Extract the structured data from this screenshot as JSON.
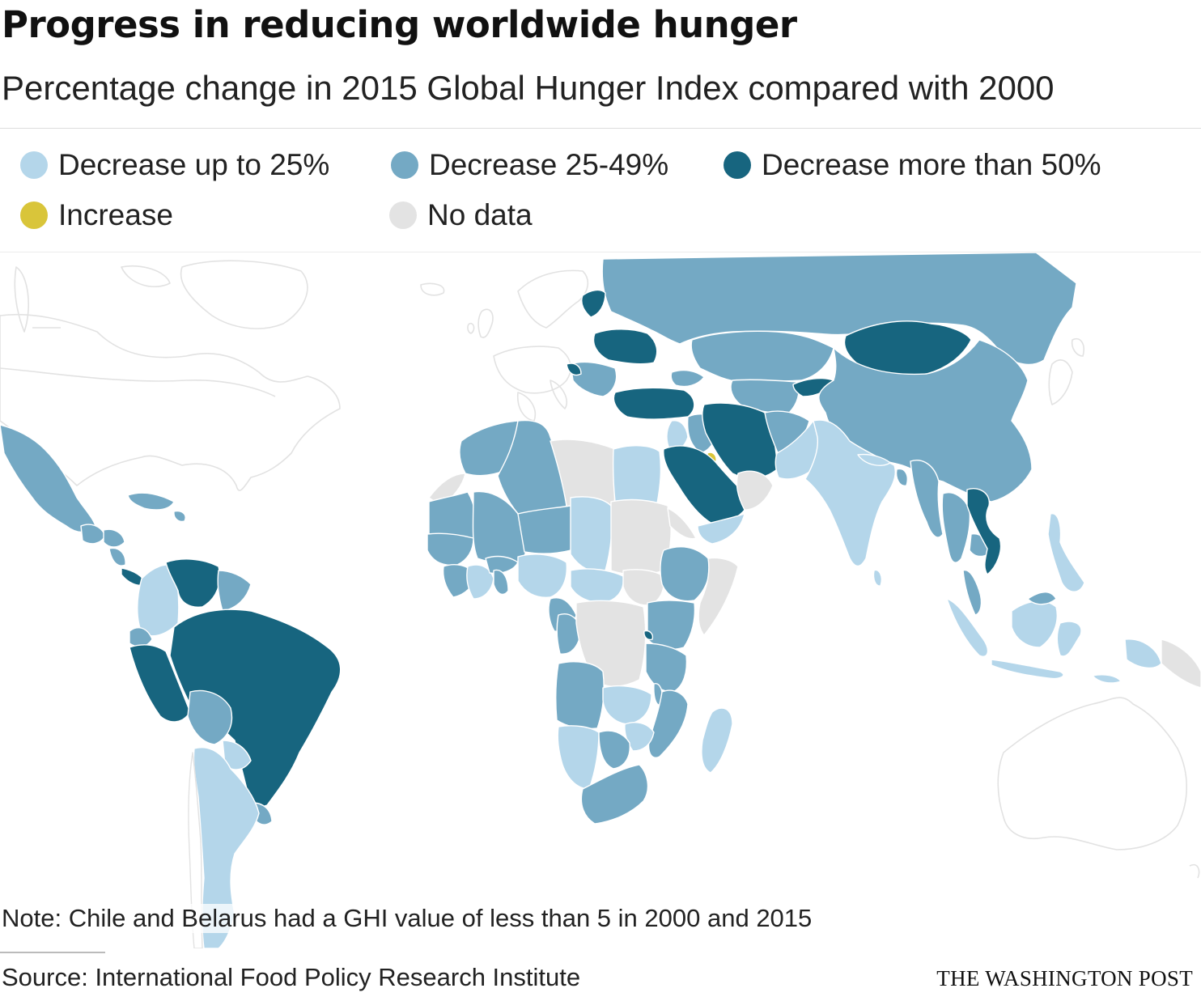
{
  "header": {
    "title": "Progress in reducing worldwide hunger",
    "subtitle": "Percentage change in 2015 Global Hunger Index compared with 2000"
  },
  "legend": [
    {
      "label": "Decrease up to 25%",
      "color": "#b4d6ea"
    },
    {
      "label": "Decrease 25-49%",
      "color": "#74a9c4"
    },
    {
      "label": "Decrease more than 50%",
      "color": "#17657f"
    },
    {
      "label": "Increase",
      "color": "#d9c53a"
    },
    {
      "label": "No data",
      "color": "#e3e3e3"
    }
  ],
  "colors": {
    "up_to_25": "#b4d6ea",
    "d25_49": "#74a9c4",
    "over_50": "#17657f",
    "increase": "#d9c53a",
    "no_data": "#e3e3e3",
    "unranked": "#ffffff",
    "border": "#e6e6e6"
  },
  "footer": {
    "note": "Note: Chile and Belarus had a GHI value of less than 5 in 2000 and 2015",
    "source": "Source: International Food Policy Research Institute",
    "credit": "THE WASHINGTON POST"
  }
}
